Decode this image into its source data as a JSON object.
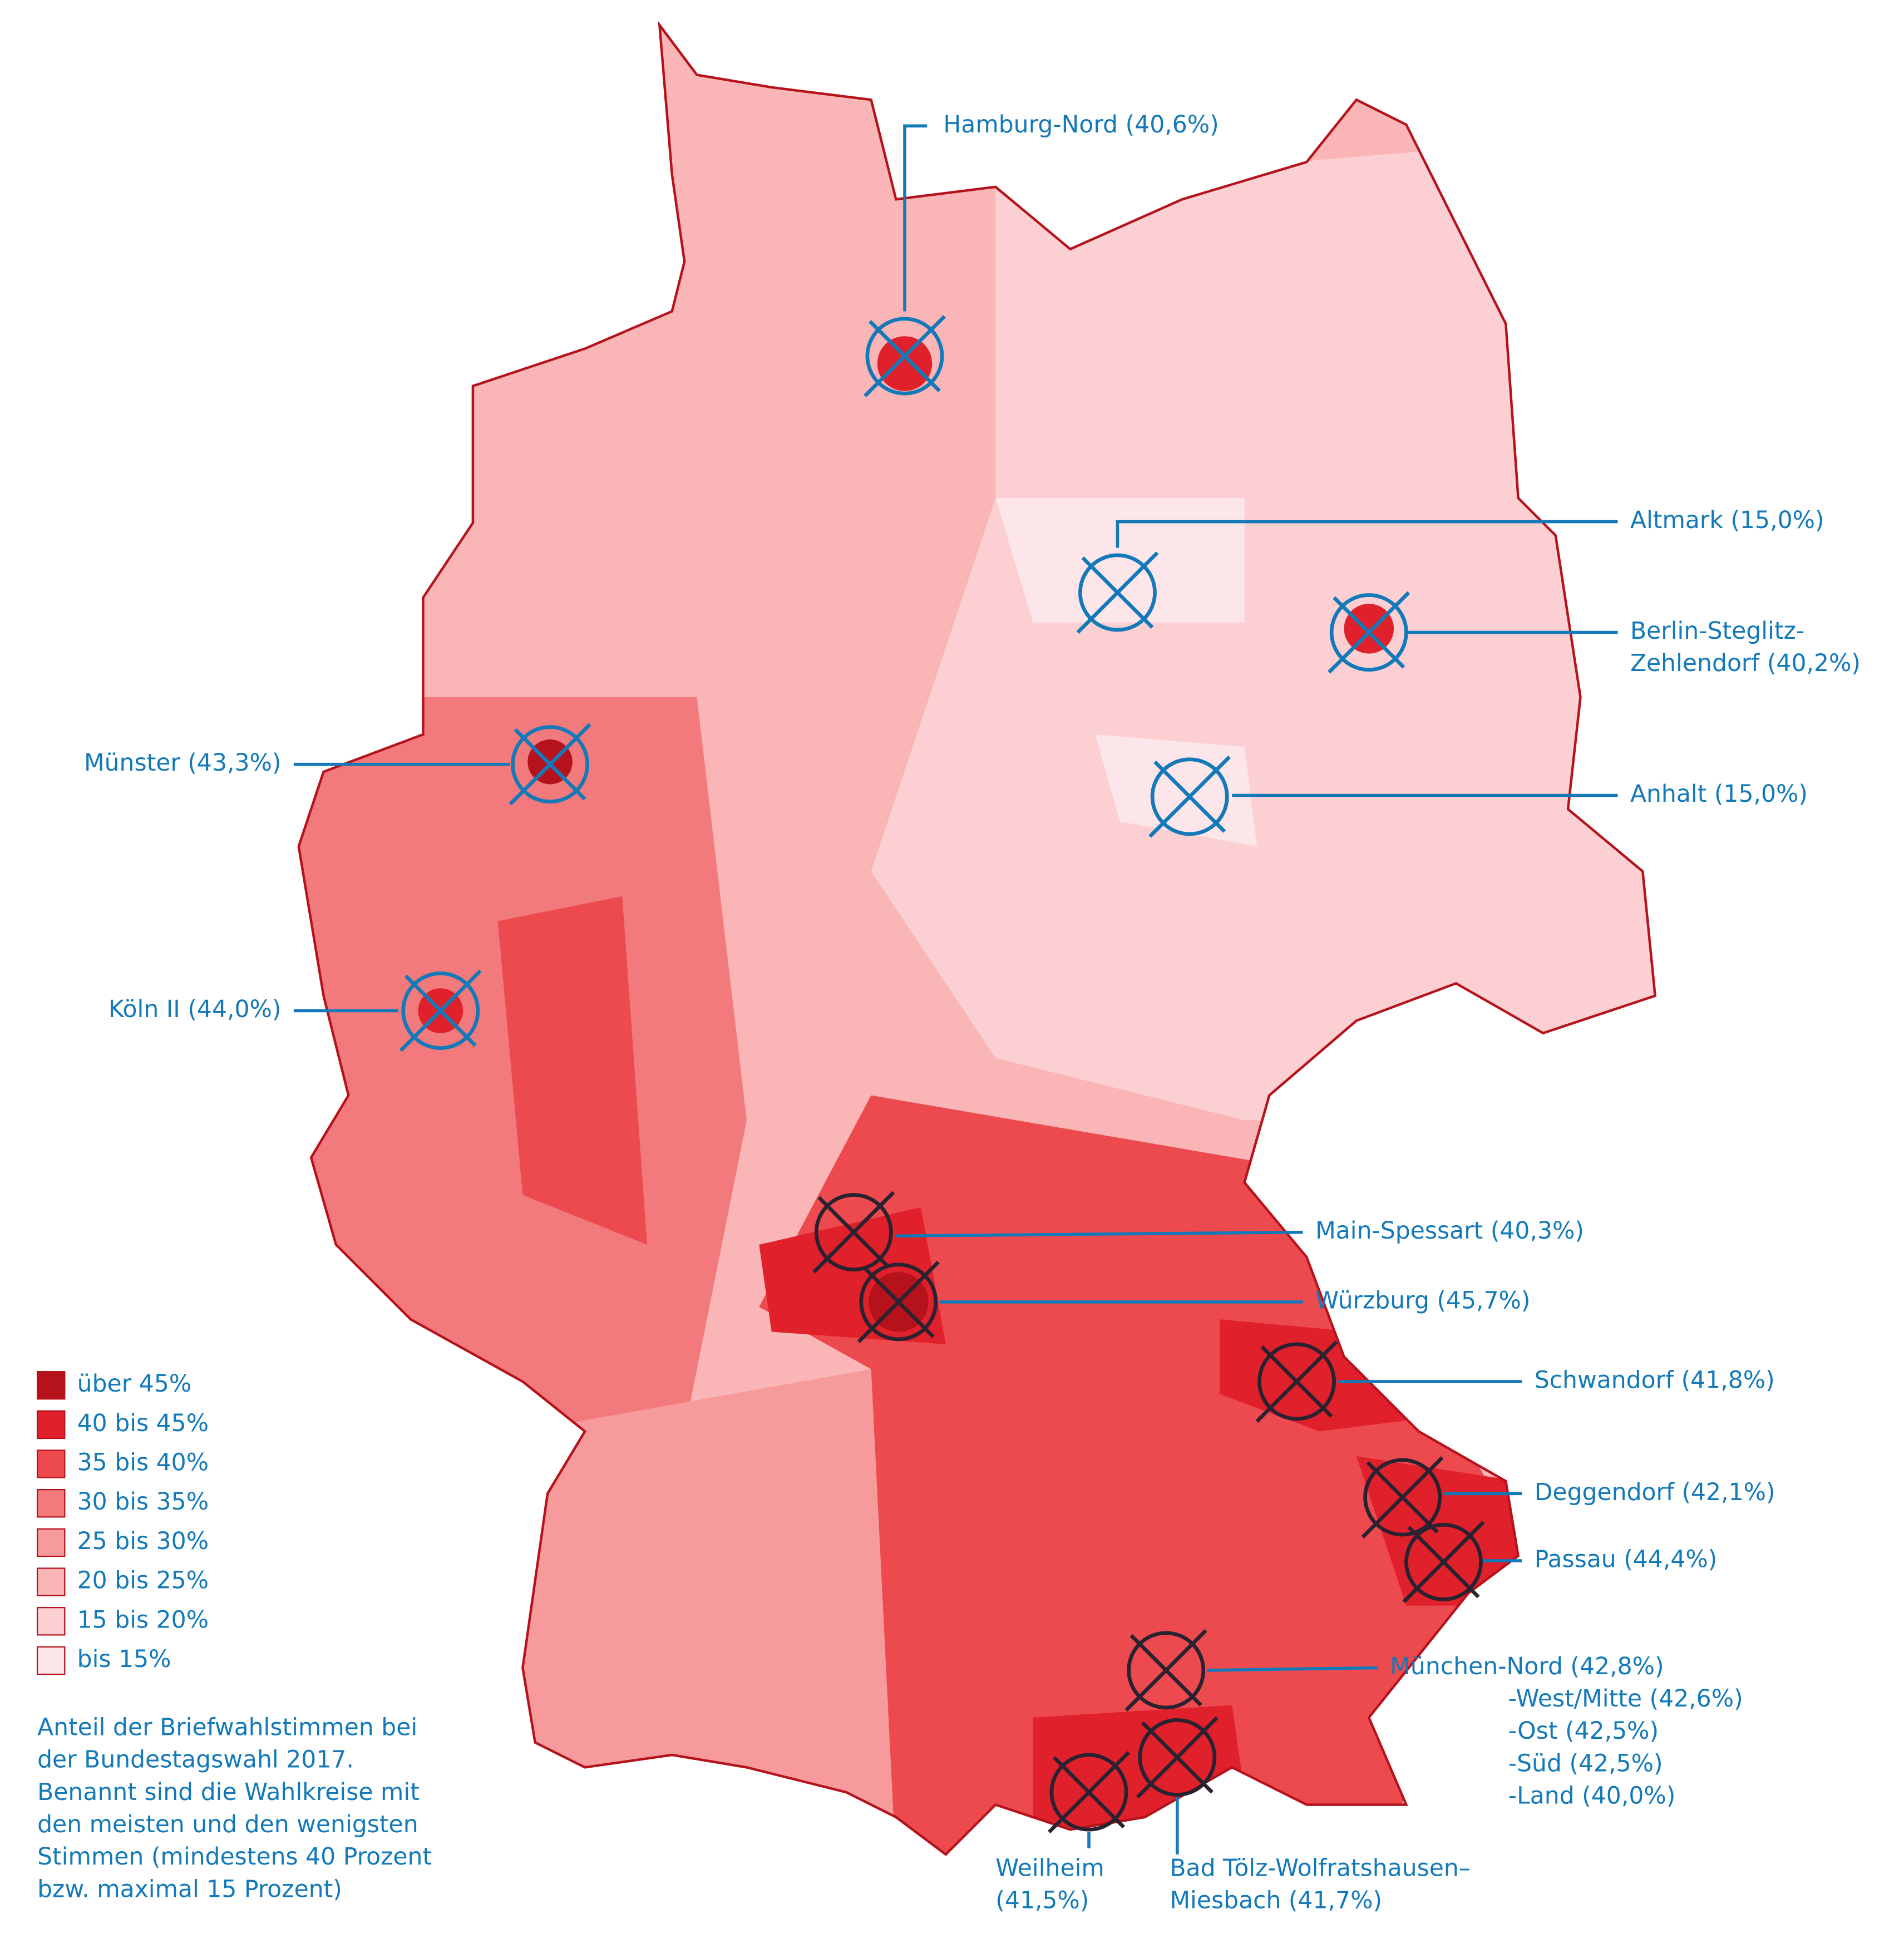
{
  "legend": [
    {
      "label": "über 45%",
      "color": "#b5121b"
    },
    {
      "label": "40 bis 45%",
      "color": "#e0202a"
    },
    {
      "label": "35 bis 40%",
      "color": "#ec4a4f"
    },
    {
      "label": "30 bis 35%",
      "color": "#f27a7c"
    },
    {
      "label": "25 bis 30%",
      "color": "#f79a9c"
    },
    {
      "label": "20 bis 25%",
      "color": "#fab5b6"
    },
    {
      "label": "15 bis 20%",
      "color": "#fcd0d2"
    },
    {
      "label": "bis 15%",
      "color": "#fde6ea"
    }
  ],
  "caption": [
    "Anteil der Briefwahlstimmen bei",
    "der Bundestagswahl 2017.",
    "Benannt sind die Wahlkreise mit",
    "den meisten und den wenigsten",
    "Stimmen (mindestens 40 Prozent",
    "bzw. maximal 15 Prozent)"
  ],
  "annotations": [
    {
      "lines": [
        "Hamburg-Nord (40,6%)"
      ]
    },
    {
      "lines": [
        "Altmark (15,0%)"
      ]
    },
    {
      "lines": [
        "Berlin-Steglitz-",
        "Zehlendorf (40,2%)"
      ]
    },
    {
      "lines": [
        "Anhalt (15,0%)"
      ]
    },
    {
      "lines": [
        "Münster (43,3%)"
      ]
    },
    {
      "lines": [
        "Köln II (44,0%)"
      ]
    },
    {
      "lines": [
        "Main-Spessart (40,3%)"
      ]
    },
    {
      "lines": [
        "Würzburg (45,7%)"
      ]
    },
    {
      "lines": [
        "Schwandorf (41,8%)"
      ]
    },
    {
      "lines": [
        "Deggendorf (42,1%)"
      ]
    },
    {
      "lines": [
        "Passau (44,4%)"
      ]
    },
    {
      "lines": [
        "München-Nord (42,8%)",
        "-West/Mitte (42,6%)",
        "-Ost (42,5%)",
        "-Süd (42,5%)",
        "-Land (40,0%)"
      ]
    },
    {
      "lines": [
        "Weilheim",
        "(41,5%)"
      ]
    },
    {
      "lines": [
        "Bad Tölz-Wolfratshausen–",
        "Miesbach (41,7%)"
      ]
    }
  ]
}
